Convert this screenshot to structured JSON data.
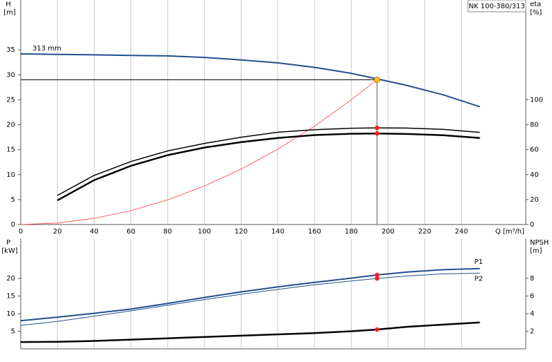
{
  "chart_data": [
    {
      "type": "line",
      "title": "NK 100-380/313",
      "annotation": "313 mm",
      "ylabel": "H",
      "yunit": "[m]",
      "y2label": "eta",
      "y2unit": "[%]",
      "xlabel": "Q [m³/h]",
      "x": [
        0,
        20,
        40,
        60,
        80,
        100,
        120,
        140,
        160,
        180,
        194,
        210,
        230,
        250
      ],
      "xlim": [
        0,
        275
      ],
      "xticks": [
        0,
        20,
        40,
        60,
        80,
        100,
        120,
        140,
        160,
        180,
        200,
        220,
        240
      ],
      "ylim": [
        0,
        45
      ],
      "yticks": [
        0,
        5,
        10,
        15,
        20,
        25,
        30,
        35
      ],
      "y2lim": [
        0,
        180
      ],
      "y2ticks": [
        0,
        20,
        40,
        60,
        80,
        100
      ],
      "grid": true,
      "series": [
        {
          "color": "#1f4e8c",
          "width": 2,
          "values": [
            34.2,
            34.1,
            34.0,
            33.9,
            33.8,
            33.5,
            33.0,
            32.4,
            31.5,
            30.3,
            29.2,
            27.9,
            26.0,
            23.6
          ]
        },
        {
          "color": "#ff3b3b",
          "width": 0.8,
          "values": [
            0,
            0.31,
            1.23,
            2.77,
            4.93,
            7.71,
            11.1,
            15.1,
            19.7,
            25.0,
            29,
            null,
            null,
            null
          ]
        },
        {
          "color": "#000000",
          "width": 1.5,
          "axis": "y2",
          "values": [
            null,
            23.3,
            39.4,
            50.5,
            59,
            65,
            70,
            74,
            76,
            77.2,
            77.5,
            77.3,
            76.3,
            73.9
          ]
        },
        {
          "color": "#000000",
          "width": 2.5,
          "axis": "y2",
          "values": [
            null,
            19.4,
            35.6,
            47,
            55.6,
            61.7,
            66,
            69.4,
            71.7,
            72.8,
            73,
            72.6,
            71.6,
            69.4
          ]
        }
      ],
      "duty_point": {
        "x": 194,
        "y": 29
      },
      "points": [
        {
          "x": 194,
          "y": 77.5,
          "axis": "y2"
        },
        {
          "x": 194,
          "y": 73,
          "axis": "y2"
        }
      ]
    },
    {
      "type": "line",
      "ylabel": "P",
      "yunit": "[kW]",
      "y2label": "NPSH",
      "y2unit": "[m]",
      "x": [
        0,
        20,
        40,
        60,
        80,
        100,
        120,
        140,
        160,
        180,
        194,
        210,
        230,
        250
      ],
      "xlim": [
        0,
        275
      ],
      "xticks": [
        0,
        20,
        40,
        60,
        80,
        100,
        120,
        140,
        160,
        180,
        200,
        220,
        240
      ],
      "ylim": [
        0,
        31.4
      ],
      "yticks": [
        5,
        10,
        15,
        20
      ],
      "y2lim": [
        0,
        12.55
      ],
      "y2ticks": [
        2,
        4,
        6,
        8
      ],
      "grid": true,
      "series": [
        {
          "name": "P1",
          "color": "#1f4e8c",
          "width": 2,
          "values": [
            8.0,
            9.0,
            10.1,
            11.3,
            12.9,
            14.6,
            16.2,
            17.6,
            18.9,
            20.1,
            21.0,
            21.8,
            22.5,
            22.8
          ]
        },
        {
          "name": "P2",
          "color": "#1f4e8c",
          "width": 1,
          "values": [
            6.7,
            7.8,
            9.3,
            10.8,
            12.4,
            14.0,
            15.5,
            16.9,
            18.2,
            19.3,
            20.0,
            20.7,
            21.3,
            21.5
          ]
        },
        {
          "color": "#000000",
          "width": 2.5,
          "axis": "y2",
          "values": [
            0.78,
            0.8,
            0.9,
            1.05,
            1.2,
            1.35,
            1.5,
            1.65,
            1.8,
            2.0,
            2.2,
            2.5,
            2.75,
            3.0
          ]
        }
      ],
      "points": [
        {
          "x": 194,
          "y": 21.0
        },
        {
          "x": 194,
          "y": 20.0
        },
        {
          "x": 194,
          "y": 2.2,
          "axis": "y2"
        }
      ]
    }
  ]
}
